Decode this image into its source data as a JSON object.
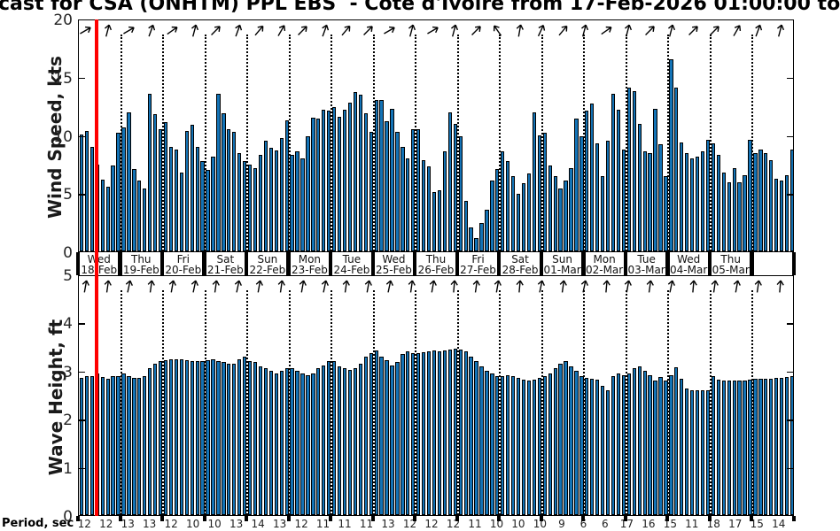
{
  "title": {
    "visible_text": "cast for CSA (ONHTM) PPL EBS  - Côte d'Ivoire from 17-Feb-2026 01:00:00 to"
  },
  "colors": {
    "bar_fill": "#1373b6",
    "bar_edge": "#000000",
    "now_line": "#ff0000",
    "axis_text": "#262626"
  },
  "x_axis": {
    "segments": 17,
    "day_labels": [
      {
        "dow": "Wed",
        "date": "18-Feb"
      },
      {
        "dow": "Thu",
        "date": "19-Feb"
      },
      {
        "dow": "Fri",
        "date": "20-Feb"
      },
      {
        "dow": "Sat",
        "date": "21-Feb"
      },
      {
        "dow": "Sun",
        "date": "22-Feb"
      },
      {
        "dow": "Mon",
        "date": "23-Feb"
      },
      {
        "dow": "Tue",
        "date": "24-Feb"
      },
      {
        "dow": "Wed",
        "date": "25-Feb"
      },
      {
        "dow": "Thu",
        "date": "26-Feb"
      },
      {
        "dow": "Fri",
        "date": "27-Feb"
      },
      {
        "dow": "Sat",
        "date": "28-Feb"
      },
      {
        "dow": "Sun",
        "date": "01-Mar"
      },
      {
        "dow": "Mon",
        "date": "02-Mar"
      },
      {
        "dow": "Tue",
        "date": "03-Mar"
      },
      {
        "dow": "Wed",
        "date": "04-Mar"
      },
      {
        "dow": "Thu",
        "date": "05-Mar"
      }
    ]
  },
  "now_marker": {
    "bar_index": 3
  },
  "bottom_axis": {
    "label": "Period, sec",
    "values": [
      12,
      12,
      13,
      13,
      12,
      10,
      10,
      13,
      14,
      13,
      12,
      11,
      11,
      11,
      13,
      12,
      12,
      12,
      11,
      10,
      10,
      10,
      9,
      6,
      6,
      17,
      16,
      15,
      11,
      18,
      17,
      15,
      14
    ]
  },
  "chart_data": [
    {
      "type": "bar",
      "name": "wind-speed",
      "ylabel": "Wind Speed, kts",
      "ylim": [
        0,
        20
      ],
      "yticks": [
        0,
        5,
        10,
        15,
        20
      ],
      "values": [
        10.1,
        10.4,
        9.0,
        7.5,
        6.2,
        5.6,
        7.4,
        10.2,
        10.7,
        12.0,
        7.1,
        6.1,
        5.4,
        13.6,
        11.8,
        10.5,
        11.1,
        9.0,
        8.8,
        6.8,
        10.4,
        10.9,
        9.0,
        7.8,
        7.0,
        8.2,
        13.6,
        11.9,
        10.5,
        10.3,
        8.5,
        7.8,
        7.5,
        7.2,
        8.3,
        9.5,
        8.9,
        8.7,
        9.8,
        11.3,
        8.3,
        8.6,
        8.0,
        9.9,
        11.5,
        11.4,
        12.2,
        12.1,
        12.4,
        11.6,
        12.2,
        12.8,
        13.7,
        13.5,
        11.9,
        10.3,
        13.0,
        13.0,
        11.2,
        12.3,
        10.3,
        9.0,
        8.0,
        10.5,
        10.5,
        7.9,
        7.3,
        5.1,
        5.3,
        8.6,
        12.0,
        11.0,
        9.9,
        4.4,
        2.1,
        1.2,
        2.5,
        3.6,
        6.1,
        7.1,
        8.6,
        7.8,
        6.5,
        5.0,
        5.9,
        6.7,
        12.0,
        10.0,
        10.2,
        7.4,
        6.5,
        5.4,
        6.1,
        7.2,
        11.4,
        9.9,
        12.1,
        12.7,
        9.3,
        6.5,
        9.5,
        13.6,
        12.2,
        8.8,
        14.1,
        13.8,
        11.0,
        8.6,
        8.5,
        12.3,
        9.2,
        6.5,
        16.5,
        14.1,
        9.4,
        8.5,
        8.0,
        8.2,
        8.6,
        9.6,
        9.3,
        8.3,
        6.8,
        6.0,
        7.2,
        6.0,
        6.6,
        9.6,
        8.5,
        8.8,
        8.5,
        7.9,
        6.3,
        6.1,
        6.6,
        8.8
      ],
      "arrows_deg": [
        60,
        15,
        60,
        20,
        55,
        15,
        45,
        20,
        40,
        30,
        45,
        20,
        40,
        45,
        60,
        15,
        60,
        15,
        45,
        -35,
        10,
        25,
        40,
        15,
        55,
        15,
        45,
        15,
        45,
        45,
        30,
        20,
        15
      ]
    },
    {
      "type": "bar",
      "name": "wave-height",
      "ylabel": "Wave Height, ft",
      "ylim": [
        0,
        5
      ],
      "yticks": [
        0,
        1,
        2,
        3,
        4,
        5
      ],
      "values": [
        2.85,
        2.9,
        2.9,
        2.95,
        2.87,
        2.83,
        2.9,
        2.9,
        2.95,
        2.9,
        2.85,
        2.85,
        2.9,
        3.05,
        3.15,
        3.2,
        3.22,
        3.25,
        3.25,
        3.24,
        3.22,
        3.2,
        3.2,
        3.2,
        3.22,
        3.25,
        3.2,
        3.18,
        3.15,
        3.15,
        3.25,
        3.3,
        3.2,
        3.18,
        3.1,
        3.05,
        3.0,
        2.95,
        3.0,
        3.05,
        3.05,
        3.0,
        2.95,
        2.92,
        2.95,
        3.05,
        3.12,
        3.2,
        3.2,
        3.1,
        3.05,
        3.02,
        3.05,
        3.15,
        3.3,
        3.38,
        3.42,
        3.3,
        3.22,
        3.12,
        3.18,
        3.35,
        3.4,
        3.38,
        3.37,
        3.39,
        3.4,
        3.42,
        3.4,
        3.42,
        3.44,
        3.46,
        3.45,
        3.4,
        3.3,
        3.2,
        3.1,
        3.0,
        2.95,
        2.9,
        2.9,
        2.92,
        2.9,
        2.85,
        2.82,
        2.8,
        2.82,
        2.85,
        2.9,
        2.95,
        3.05,
        3.15,
        3.2,
        3.1,
        3.0,
        2.9,
        2.85,
        2.84,
        2.82,
        2.7,
        2.6,
        2.89,
        2.95,
        2.92,
        2.95,
        3.05,
        3.1,
        3.0,
        2.92,
        2.8,
        2.87,
        2.8,
        2.92,
        3.08,
        2.84,
        2.64,
        2.6,
        2.6,
        2.6,
        2.6,
        2.9,
        2.82,
        2.8,
        2.8,
        2.8,
        2.8,
        2.8,
        2.82,
        2.83,
        2.83,
        2.84,
        2.84,
        2.85,
        2.85,
        2.87,
        2.9
      ],
      "arrows_deg": [
        10,
        8,
        12,
        8,
        10,
        12,
        8,
        12,
        10,
        8,
        10,
        12,
        8,
        10,
        12,
        8,
        10,
        5,
        8,
        10,
        5,
        12,
        8,
        12,
        5,
        10,
        8,
        12,
        5,
        8,
        10,
        8,
        5
      ]
    }
  ]
}
